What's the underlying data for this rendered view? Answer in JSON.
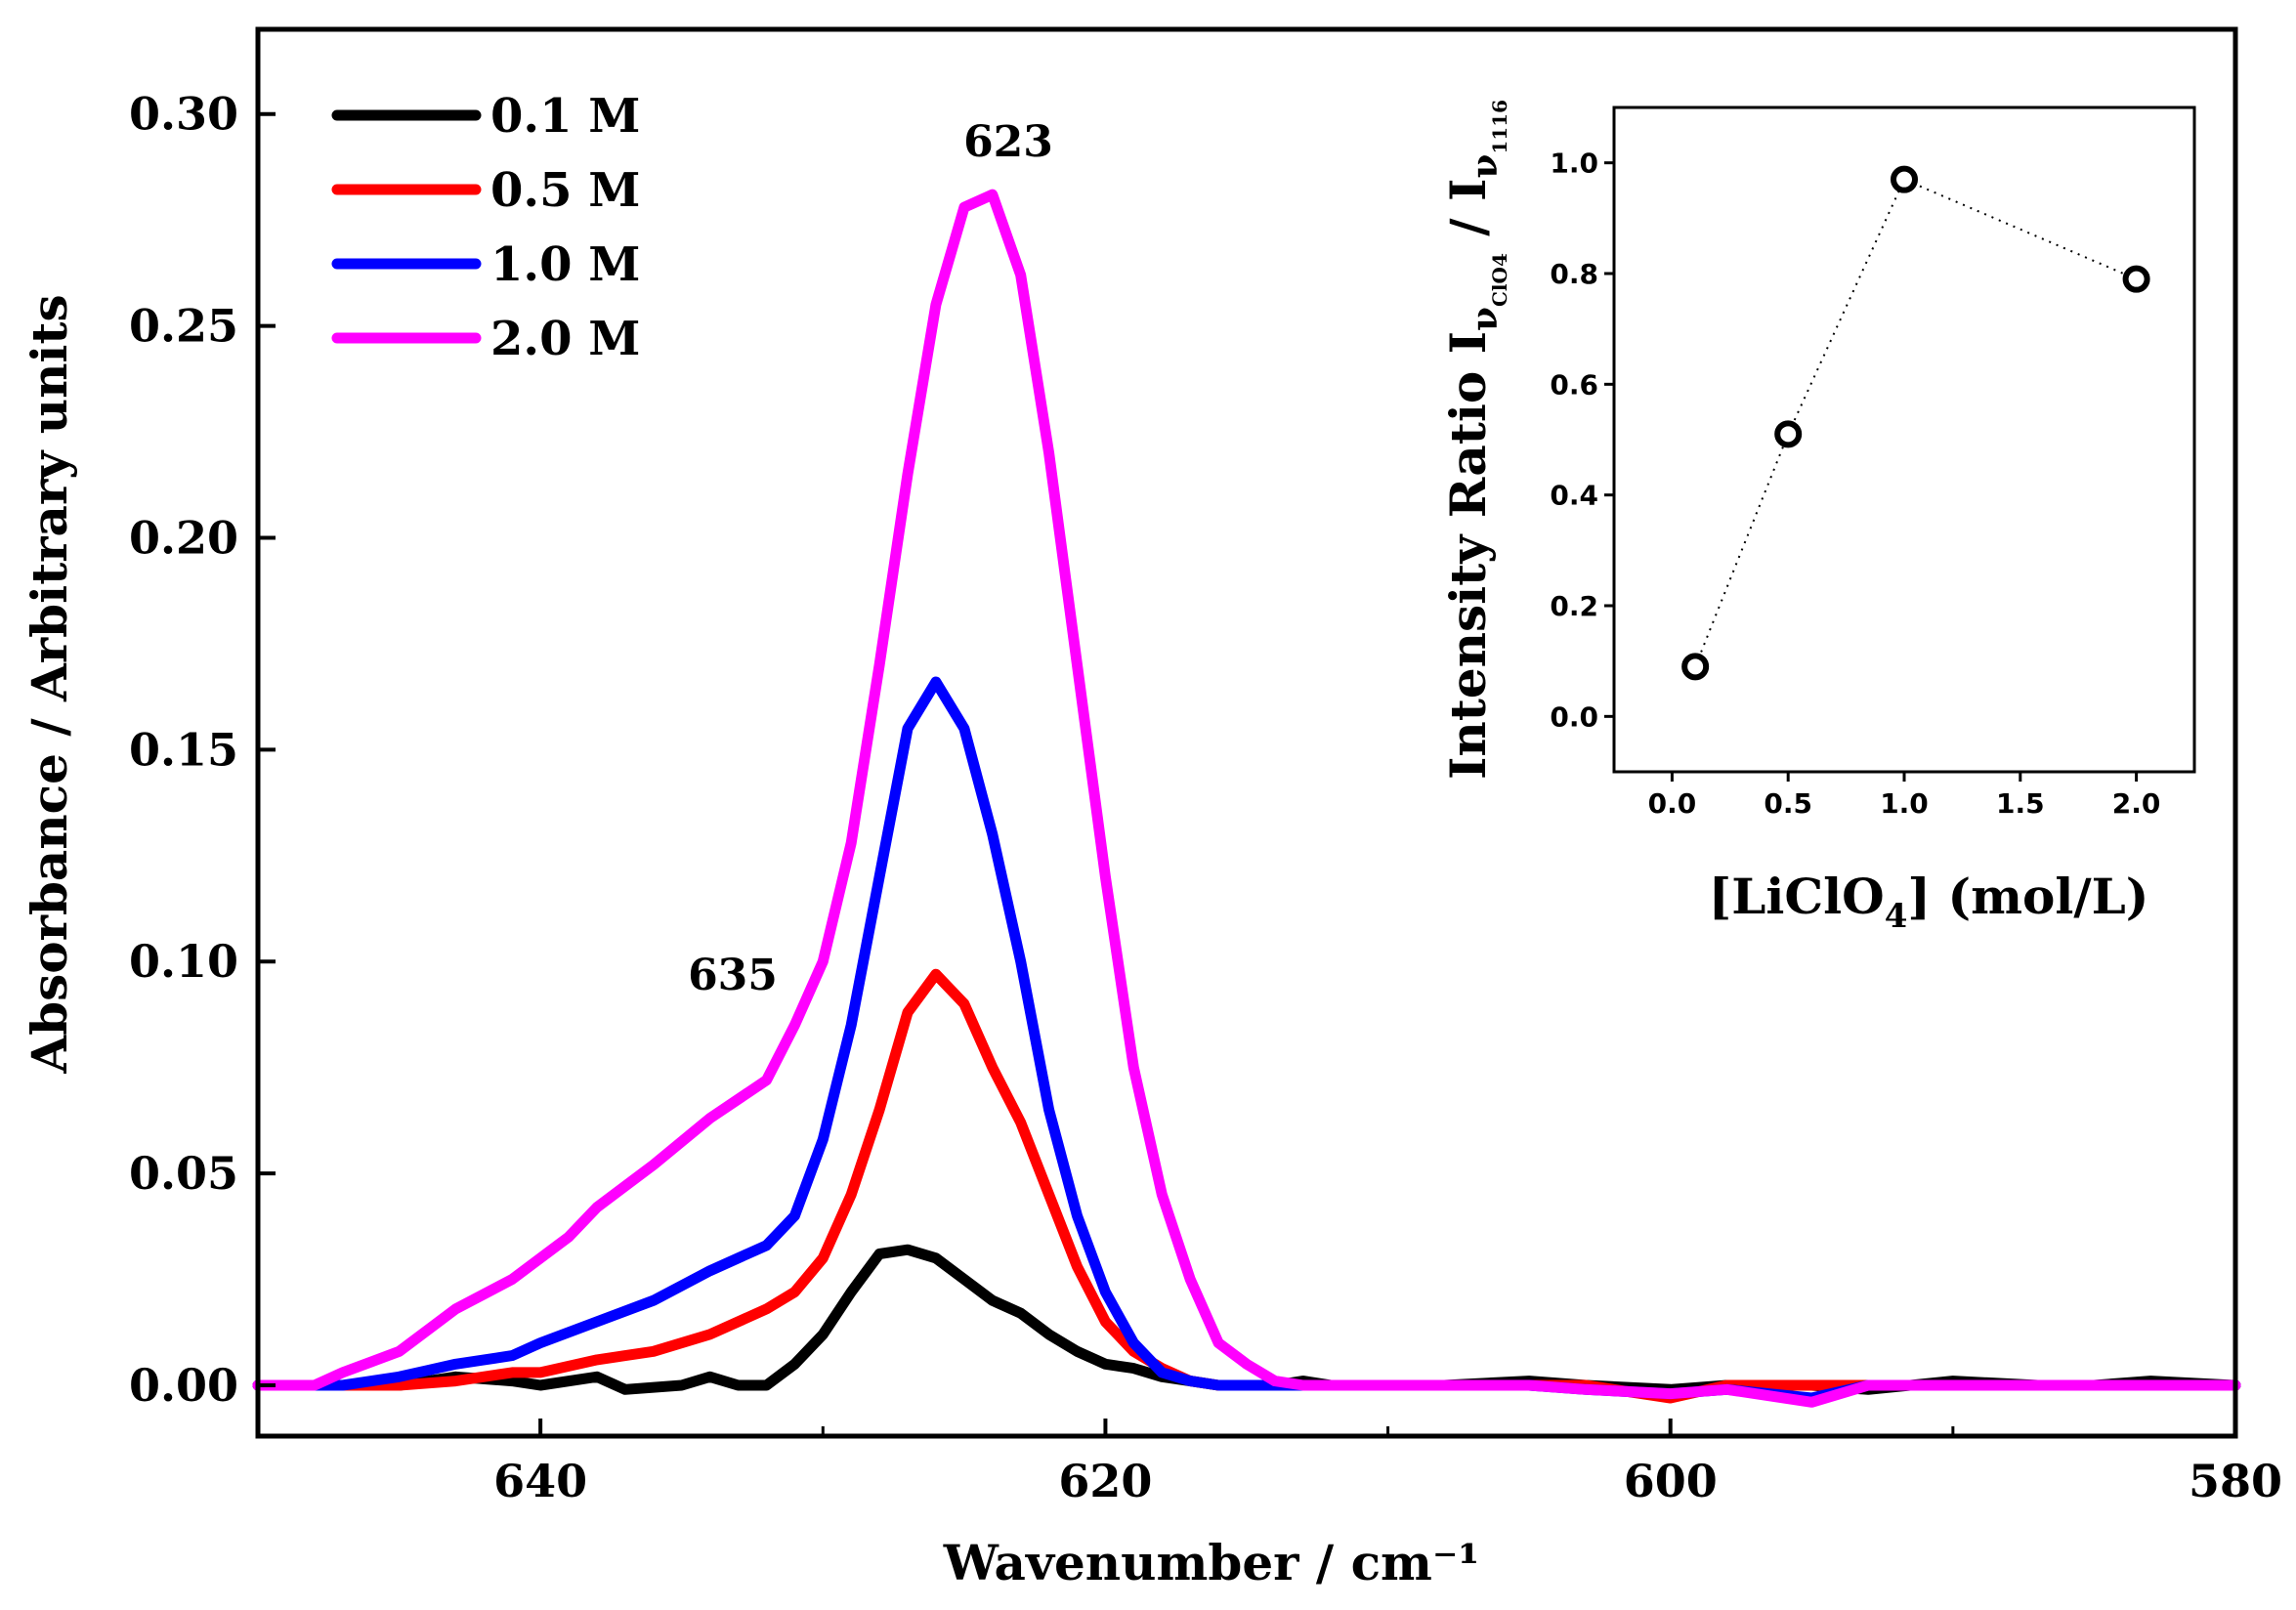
{
  "chart_data": [
    {
      "type": "line",
      "title": "",
      "xlabel": "Wavenumber / cm⁻¹",
      "ylabel": "Absorbance / Arbitrary units",
      "xlim": [
        650,
        580
      ],
      "ylim": [
        -0.012,
        0.32
      ],
      "xticks": [
        "640",
        "620",
        "600",
        "580"
      ],
      "yticks": [
        "0.00",
        "0.05",
        "0.10",
        "0.15",
        "0.20",
        "0.25",
        "0.30"
      ],
      "legend_position": "top-left",
      "annotations": [
        "623",
        "635"
      ],
      "series": [
        {
          "name": "0.1 M",
          "color": "#000000",
          "x": [
            650,
            647,
            645,
            643,
            641,
            640,
            638,
            637,
            635,
            634,
            633,
            632,
            631,
            630,
            629,
            628,
            627,
            626,
            625,
            624,
            623,
            622,
            621,
            620,
            619,
            618,
            617,
            616,
            615,
            614,
            613,
            612,
            611,
            610,
            608,
            605,
            603,
            600,
            598,
            595,
            593,
            590,
            587,
            585,
            583,
            580
          ],
          "y": [
            0.0,
            0.0,
            0.0,
            0.002,
            0.001,
            0.0,
            0.002,
            -0.001,
            0.0,
            0.002,
            0.0,
            0.0,
            0.005,
            0.012,
            0.022,
            0.031,
            0.032,
            0.03,
            0.025,
            0.02,
            0.017,
            0.012,
            0.008,
            0.005,
            0.004,
            0.002,
            0.001,
            0.0,
            0.0,
            0.0,
            0.001,
            0.0,
            0.0,
            0.0,
            0.0,
            0.001,
            0.0,
            -0.001,
            0.0,
            0.0,
            -0.001,
            0.001,
            0.0,
            0.0,
            0.001,
            0.0
          ]
        },
        {
          "name": "0.5 M",
          "color": "#ff0000",
          "x": [
            650,
            647,
            645,
            643,
            641,
            640,
            638,
            636,
            634,
            632,
            631,
            630,
            629,
            628,
            627,
            626,
            625,
            624,
            623,
            622,
            621,
            620,
            619,
            618,
            617,
            616,
            615,
            614,
            613,
            612,
            611,
            610,
            608,
            605,
            603,
            600,
            598,
            595,
            593,
            590,
            587,
            585,
            583,
            580
          ],
          "y": [
            0.0,
            0.0,
            0.0,
            0.001,
            0.003,
            0.003,
            0.006,
            0.008,
            0.012,
            0.018,
            0.022,
            0.03,
            0.045,
            0.065,
            0.088,
            0.097,
            0.09,
            0.075,
            0.062,
            0.045,
            0.028,
            0.015,
            0.008,
            0.004,
            0.001,
            0.0,
            0.0,
            0.0,
            0.0,
            0.0,
            0.0,
            0.0,
            0.0,
            0.0,
            0.0,
            -0.003,
            0.0,
            0.0,
            0.0,
            0.0,
            0.0,
            0.0,
            0.0,
            0.0
          ]
        },
        {
          "name": "1.0 M",
          "color": "#0000ff",
          "x": [
            650,
            647,
            645,
            643,
            641,
            640,
            638,
            636,
            634,
            632,
            631,
            630,
            629,
            628,
            627,
            626,
            625,
            624,
            623,
            622,
            621,
            620,
            619,
            618,
            617,
            616,
            615,
            614,
            613,
            612,
            611,
            610,
            608,
            605,
            603,
            600,
            598,
            595,
            593,
            590,
            587,
            585,
            583,
            580
          ],
          "y": [
            0.0,
            0.0,
            0.002,
            0.005,
            0.007,
            0.01,
            0.015,
            0.02,
            0.027,
            0.033,
            0.04,
            0.058,
            0.085,
            0.12,
            0.155,
            0.166,
            0.155,
            0.13,
            0.1,
            0.065,
            0.04,
            0.022,
            0.01,
            0.003,
            0.001,
            0.0,
            0.0,
            0.0,
            0.0,
            0.0,
            0.0,
            0.0,
            0.0,
            0.0,
            -0.001,
            -0.002,
            -0.001,
            -0.003,
            0.0,
            0.0,
            0.0,
            0.0,
            0.0,
            0.0
          ]
        },
        {
          "name": "2.0 M",
          "color": "#ff00ff",
          "x": [
            650,
            648,
            647,
            645,
            643,
            641,
            639,
            638,
            636,
            634,
            632,
            631,
            630,
            629,
            628,
            627,
            626,
            625,
            624,
            623,
            622,
            621,
            620,
            619,
            618,
            617,
            616,
            615,
            614,
            613,
            612,
            611,
            610,
            608,
            605,
            603,
            600,
            598,
            595,
            593,
            590,
            587,
            585,
            583,
            580
          ],
          "y": [
            0.0,
            0.0,
            0.003,
            0.008,
            0.018,
            0.025,
            0.035,
            0.042,
            0.052,
            0.063,
            0.072,
            0.085,
            0.1,
            0.128,
            0.17,
            0.215,
            0.255,
            0.278,
            0.281,
            0.262,
            0.22,
            0.17,
            0.12,
            0.075,
            0.045,
            0.025,
            0.01,
            0.005,
            0.001,
            0.0,
            0.0,
            0.0,
            0.0,
            0.0,
            0.0,
            -0.001,
            -0.002,
            -0.001,
            -0.004,
            0.0,
            0.0,
            0.0,
            0.0,
            0.0,
            0.0
          ]
        }
      ]
    },
    {
      "type": "scatter",
      "title": "",
      "xlabel": "[LiClO4]  (mol/L)",
      "ylabel": "Intensity Ratio Iν ClO4 / Iν 1116",
      "xlim": [
        -0.25,
        2.25
      ],
      "ylim": [
        -0.1,
        1.1
      ],
      "xticks": [
        "0.0",
        "0.5",
        "1.0",
        "1.5",
        "2.0"
      ],
      "yticks": [
        "0.0",
        "0.2",
        "0.4",
        "0.6",
        "0.8",
        "1.0"
      ],
      "series": [
        {
          "name": "ratio",
          "color": "#000000",
          "marker": "open-circle",
          "line": "dotted",
          "x": [
            0.1,
            0.5,
            1.0,
            2.0
          ],
          "y": [
            0.09,
            0.51,
            0.97,
            0.79
          ]
        }
      ]
    }
  ],
  "inset_axis_labels": {
    "y_prefix": "Intensity Ratio I",
    "y_sub1": "ν",
    "y_sub1_sub": "ClO4",
    "y_mid": " / I",
    "y_sub2": "ν",
    "y_sub2_sub": "1116",
    "x_pre": "[LiClO",
    "x_sub": "4",
    "x_post": "]  (mol/L)"
  }
}
